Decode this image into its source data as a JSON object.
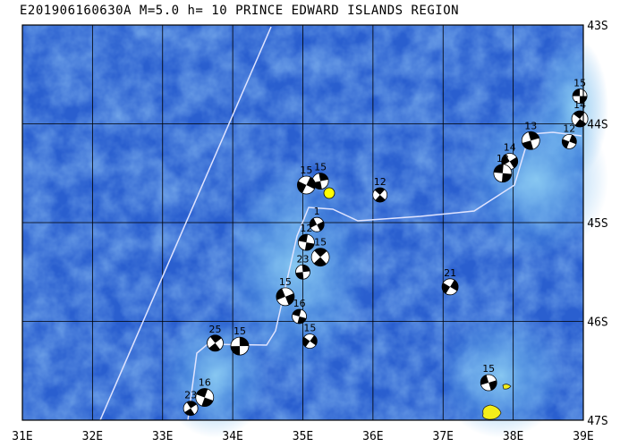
{
  "title": "E201906160630A M=5.0 h= 10 PRINCE EDWARD ISLANDS REGION",
  "map": {
    "lon_labels": [
      "31E",
      "32E",
      "33E",
      "34E",
      "35E",
      "36E",
      "37E",
      "38E",
      "39E"
    ],
    "lat_labels": [
      "43S",
      "44S",
      "45S",
      "46S",
      "47S"
    ],
    "colors": {
      "ocean_deep": "#2a5fcf",
      "ocean_mid": "#3d7fe0",
      "ocean_shallow": "#7fc6f0",
      "grid": "#000000",
      "plate_boundary": "#e8e8ff",
      "island": "#f4ee1a",
      "epicenter": "#ffff00"
    },
    "events": [
      {
        "label": "15",
        "lon": 38.95,
        "lat": 43.72
      },
      {
        "label": "14",
        "lon": 38.95,
        "lat": 43.95
      },
      {
        "label": "13",
        "lon": 38.25,
        "lat": 44.17
      },
      {
        "label": "12",
        "lon": 38.8,
        "lat": 44.18
      },
      {
        "label": "14",
        "lon": 37.95,
        "lat": 44.38
      },
      {
        "label": "12",
        "lon": 37.85,
        "lat": 44.5
      },
      {
        "label": "12",
        "lon": 36.1,
        "lat": 44.72
      },
      {
        "label": "15",
        "lon": 35.25,
        "lat": 44.58
      },
      {
        "label": "15",
        "lon": 35.05,
        "lat": 44.62
      },
      {
        "label": "1",
        "lon": 35.2,
        "lat": 45.02
      },
      {
        "label": "12",
        "lon": 35.05,
        "lat": 45.2
      },
      {
        "label": "15",
        "lon": 35.25,
        "lat": 45.35
      },
      {
        "label": "23",
        "lon": 35.0,
        "lat": 45.5
      },
      {
        "label": "21",
        "lon": 37.1,
        "lat": 45.65
      },
      {
        "label": "15",
        "lon": 34.75,
        "lat": 45.75
      },
      {
        "label": "16",
        "lon": 34.95,
        "lat": 45.95
      },
      {
        "label": "25",
        "lon": 33.75,
        "lat": 46.22
      },
      {
        "label": "15",
        "lon": 34.1,
        "lat": 46.25
      },
      {
        "label": "15",
        "lon": 35.1,
        "lat": 46.2
      },
      {
        "label": "15",
        "lon": 37.65,
        "lat": 46.62
      },
      {
        "label": "16",
        "lon": 33.6,
        "lat": 46.77
      },
      {
        "label": "23",
        "lon": 33.4,
        "lat": 46.88
      }
    ]
  }
}
